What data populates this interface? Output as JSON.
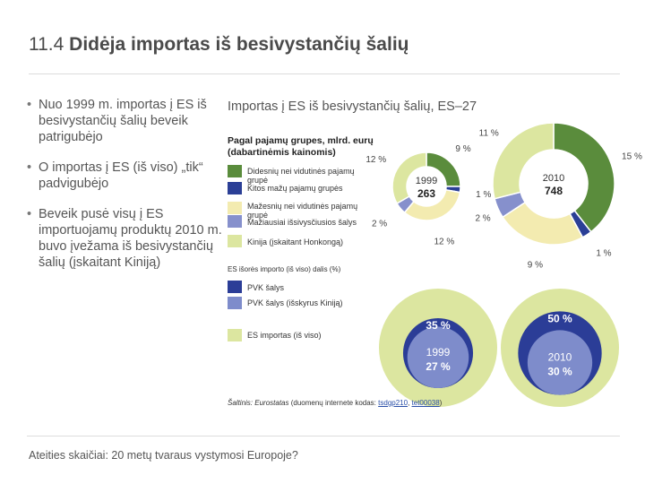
{
  "slide": {
    "title_num": "11.4",
    "title_text": "Didėja importas iš besivystančių šalių",
    "bullets": [
      "Nuo 1999 m. importas į ES iš besivystančių šalių beveik patrigubėjo",
      "O importas į ES (iš viso) „tik“ padvigubėjo",
      "Beveik pusė visų į ES importuojamų produktų 2010 m. buvo įvežama iš besivystančių šalių (įskaitant Kiniją)"
    ],
    "footer": "Ateities skaičiai: 20 metų tvaraus vystymosi Europoje?"
  },
  "colors": {
    "green": "#5a8c3c",
    "light_green": "#dce6a0",
    "pale_yellow": "#f3ebb0",
    "blue": "#2b3f96",
    "light_blue": "#8690cc",
    "pvk_dark": "#2b3d97",
    "pvk_light": "#7e8ccb"
  },
  "chart": {
    "title": "Importas į ES iš besivystančių šalių, ES–27",
    "subtitle_line1": "Pagal pajamų grupes, mlrd. eurų",
    "subtitle_line2": "(dabartinėmis kainomis)",
    "legend": [
      "Didesnių nei vidutinės pajamų grupė",
      "Kitos mažų pajamų grupės",
      "Mažesnių nei vidutinės pajamų grupė",
      "Mažiausiai išsivysčiusios šalys",
      "Kinija (įskaitant Honkongą)"
    ],
    "section2_label": "ES išorės importo (iš viso) dalis (%)",
    "legend2": [
      "PVK šalys",
      "PVK šalys (išskyrus Kiniją)",
      "ES importas (iš viso)"
    ],
    "source_prefix": "Šaltinis:",
    "source_italic": "Eurostatas",
    "source_mid": "(duomenų internete kodas:",
    "source_code1": "tsdgp210",
    "source_sep": ",",
    "source_code2": "tet00038",
    "source_end": ")"
  },
  "chart_data": [
    {
      "type": "pie",
      "title": "1999",
      "total": "263",
      "slices": [
        {
          "label": "Didesnių nei vidutinės pajamų grupė",
          "value": 9,
          "display": "9 %",
          "color": "#5a8c3c"
        },
        {
          "label": "Kitos mažų pajamų grupės",
          "value": 1,
          "display": "1 %",
          "color": "#2b3f96"
        },
        {
          "label": "Mažesnių nei vidutinės pajamų grupė",
          "value": 12,
          "display": "12 %",
          "color": "#f3ebb0"
        },
        {
          "label": "Mažiausiai išsivysčiusios šalys",
          "value": 2,
          "display": "2 %",
          "color": "#8690cc"
        },
        {
          "label": "Kinija (įskaitant Honkongą)",
          "value": 12,
          "display": "12 %",
          "color": "#dce6a0"
        }
      ]
    },
    {
      "type": "pie",
      "title": "2010",
      "total": "748",
      "slices": [
        {
          "label": "Didesnių nei vidutinės pajamų grupė",
          "value": 15,
          "display": "15 %",
          "color": "#5a8c3c"
        },
        {
          "label": "Kitos mažų pajamų grupės",
          "value": 1,
          "display": "1 %",
          "color": "#2b3f96"
        },
        {
          "label": "Mažesnių nei vidutinės pajamų grupė",
          "value": 9,
          "display": "9 %",
          "color": "#f3ebb0"
        },
        {
          "label": "Mažiausiai išsivysčiusios šalys",
          "value": 2,
          "display": "2 %",
          "color": "#8690cc"
        },
        {
          "label": "Kinija (įskaitant Honkongą)",
          "value": 11,
          "display": "11 %",
          "color": "#dce6a0"
        }
      ]
    },
    {
      "type": "bubble",
      "title": "ES išorės importo (iš viso) dalis (%)",
      "series": [
        {
          "year": "1999",
          "pvk": 35,
          "pvk_display": "35 %",
          "pvk_excl_china": 27,
          "pvk_excl_china_display": "27 %"
        },
        {
          "year": "2010",
          "pvk": 50,
          "pvk_display": "50 %",
          "pvk_excl_china": 30,
          "pvk_excl_china_display": "30 %"
        }
      ]
    }
  ]
}
